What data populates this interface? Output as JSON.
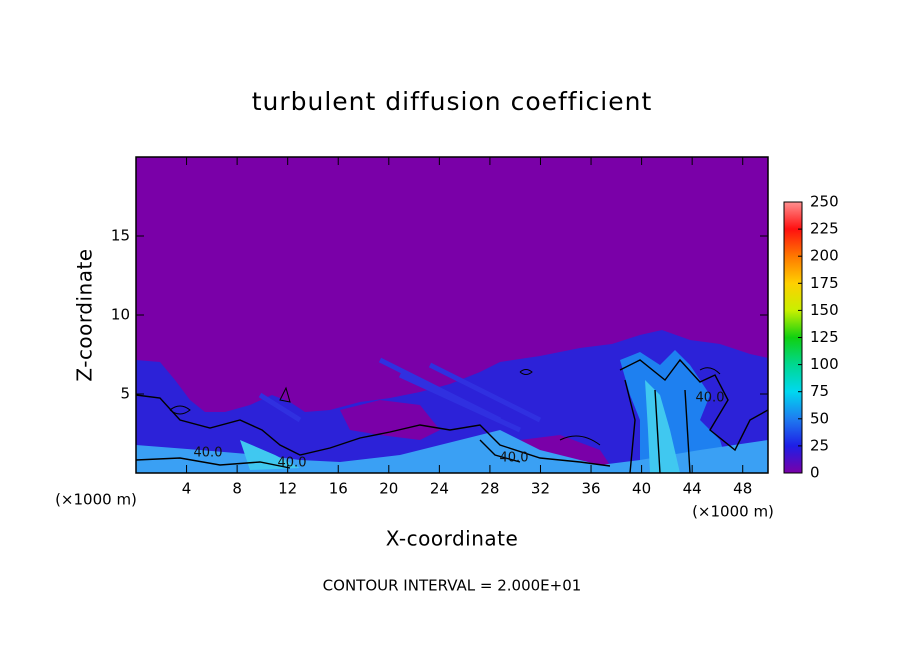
{
  "chart_data": {
    "type": "contour",
    "title": "turbulent diffusion coefficient",
    "xlabel": "X-coordinate",
    "ylabel": "Z-coordinate",
    "xunit": "(×1000 m)",
    "note": "CONTOUR INTERVAL = 2.000E+01",
    "xlim": [
      0,
      50
    ],
    "xticks": [
      4,
      8,
      12,
      16,
      20,
      24,
      28,
      32,
      36,
      40,
      44,
      48
    ],
    "ylim": [
      0,
      20
    ],
    "yticks": [
      5,
      10,
      15
    ],
    "contour_labels": [
      "40.0",
      "40.0",
      "40.0",
      "40.0"
    ],
    "colorbar": {
      "lim": [
        0,
        250
      ],
      "ticks": [
        0,
        25,
        50,
        75,
        100,
        125,
        150,
        175,
        200,
        225,
        250
      ],
      "colors": [
        "#7a00a8",
        "#1e1ee6",
        "#1e7cf0",
        "#00d8f0",
        "#00d890",
        "#10d010",
        "#c8f000",
        "#ffd000",
        "#ff7800",
        "#ff1010",
        "#ff9090"
      ]
    }
  }
}
